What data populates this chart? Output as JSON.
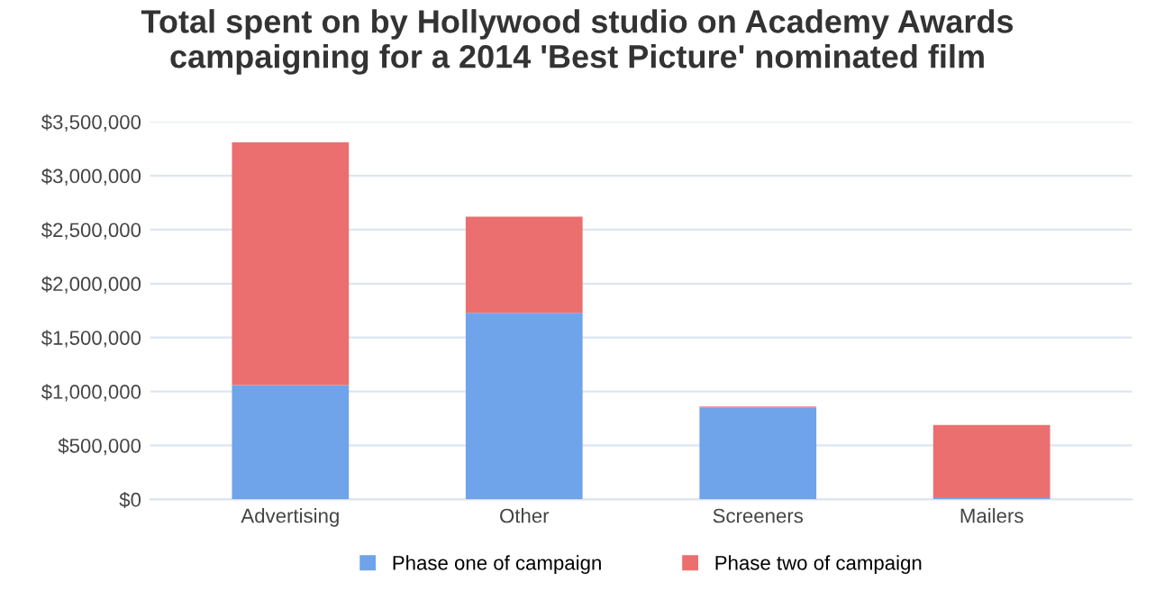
{
  "chart_data": {
    "type": "bar",
    "stacked": true,
    "title": "Total spent on by Hollywood studio on Academy Awards\ncampaigning for a 2014 'Best Picture' nominated film",
    "categories": [
      "Advertising",
      "Other",
      "Screeners",
      "Mailers"
    ],
    "series": [
      {
        "name": "Phase one of campaign",
        "color": "#6fa3ea",
        "values": [
          1060000,
          1730000,
          850000,
          20000
        ]
      },
      {
        "name": "Phase two of campaign",
        "color": "#eb6f6f",
        "values": [
          2250000,
          890000,
          10000,
          670000
        ]
      }
    ],
    "ylim": [
      0,
      3500000
    ],
    "yticks": [
      {
        "value": 0,
        "label": "$0"
      },
      {
        "value": 500000,
        "label": "$500,000"
      },
      {
        "value": 1000000,
        "label": "$1,000,000"
      },
      {
        "value": 1500000,
        "label": "$1,500,000"
      },
      {
        "value": 2000000,
        "label": "$2,000,000"
      },
      {
        "value": 2500000,
        "label": "$2,500,000"
      },
      {
        "value": 3000000,
        "label": "$3,000,000"
      },
      {
        "value": 3500000,
        "label": "$3,500,000"
      }
    ],
    "grid": "y",
    "legend": "bottom"
  }
}
